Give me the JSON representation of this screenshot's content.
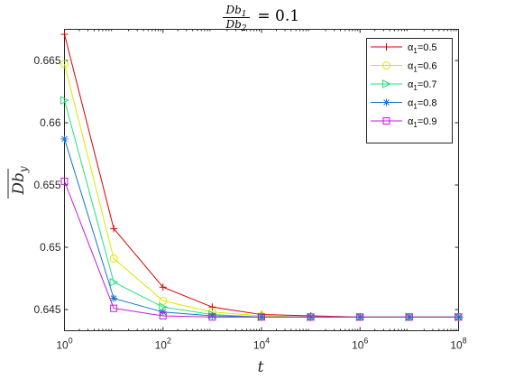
{
  "chart_data": {
    "type": "line",
    "title": {
      "num_base": "Db",
      "num_sub": "1",
      "den_base": "Db",
      "den_sub": "2",
      "rest": " = 0.1"
    },
    "xlabel": "t",
    "ylabel": "Db",
    "ylabel_sub": "y",
    "x_scale": "log",
    "xlim": [
      1,
      100000000
    ],
    "ylim": [
      0.6433,
      0.6675
    ],
    "x_ticks": [
      {
        "value": 1,
        "base": "10",
        "exp": "0"
      },
      {
        "value": 100,
        "base": "10",
        "exp": "2"
      },
      {
        "value": 10000,
        "base": "10",
        "exp": "4"
      },
      {
        "value": 1000000,
        "base": "10",
        "exp": "6"
      },
      {
        "value": 100000000,
        "base": "10",
        "exp": "8"
      }
    ],
    "y_ticks": [
      {
        "value": 0.645,
        "label": "0.645"
      },
      {
        "value": 0.65,
        "label": "0.65"
      },
      {
        "value": 0.655,
        "label": "0.655"
      },
      {
        "value": 0.66,
        "label": "0.66"
      },
      {
        "value": 0.665,
        "label": "0.665"
      }
    ],
    "grid": false,
    "legend_position": "top-right",
    "x": [
      1,
      10,
      100,
      1000,
      10000,
      100000,
      1000000,
      10000000,
      100000000
    ],
    "series": [
      {
        "name": "α",
        "name_sub": "1",
        "name_value": "=0.5",
        "color": "#d40000",
        "marker": "plus",
        "values": [
          0.6671,
          0.6515,
          0.6468,
          0.6452,
          0.6446,
          0.6445,
          0.6444,
          0.6444,
          0.6444
        ]
      },
      {
        "name": "α",
        "name_sub": "1",
        "name_value": "=0.6",
        "color": "#d8e800",
        "marker": "circle",
        "values": [
          0.6647,
          0.6491,
          0.6457,
          0.6448,
          0.6445,
          0.6444,
          0.6444,
          0.6444,
          0.6444
        ]
      },
      {
        "name": "α",
        "name_sub": "1",
        "name_value": "=0.7",
        "color": "#22e07a",
        "marker": "triangle-right",
        "values": [
          0.6618,
          0.6472,
          0.6452,
          0.6446,
          0.6444,
          0.6444,
          0.6444,
          0.6444,
          0.6444
        ]
      },
      {
        "name": "α",
        "name_sub": "1",
        "name_value": "=0.8",
        "color": "#1673cf",
        "marker": "asterisk",
        "values": [
          0.6587,
          0.6459,
          0.6448,
          0.6445,
          0.6444,
          0.6444,
          0.6444,
          0.6444,
          0.6444
        ]
      },
      {
        "name": "α",
        "name_sub": "1",
        "name_value": "=0.9",
        "color": "#c41ad8",
        "marker": "square",
        "values": [
          0.6553,
          0.6451,
          0.6445,
          0.6444,
          0.6444,
          0.6444,
          0.6444,
          0.6444,
          0.6444
        ]
      }
    ]
  }
}
